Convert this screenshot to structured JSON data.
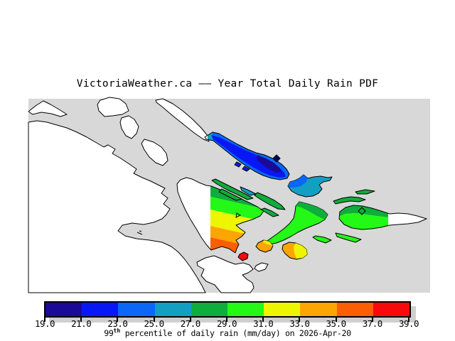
{
  "title": "VictoriaWeather.ca —— Year Total Daily Rain PDF",
  "map": {
    "sea_color": "#d8d8d8",
    "land_color": "#ffffff",
    "coastline_color": "#000000"
  },
  "colorbar": {
    "tick_labels": [
      "19.0",
      "21.0",
      "23.0",
      "25.0",
      "27.0",
      "29.0",
      "31.0",
      "33.0",
      "35.0",
      "37.0",
      "39.0"
    ],
    "segment_colors": [
      "#1a0a96",
      "#0718f5",
      "#0a67f7",
      "#12a0c2",
      "#0fad3b",
      "#24f816",
      "#edf501",
      "#fca503",
      "#fc5e04",
      "#f8090a"
    ],
    "caption_prefix": "99",
    "caption_sup": "th",
    "caption_rest": " percentile of daily rain (mm/day) on 2026-Apr-20"
  },
  "chart_data": {
    "type": "heatmap",
    "title": "VictoriaWeather.ca —— Year Total Daily Rain PDF",
    "legend_label": "99th percentile of daily rain (mm/day) on 2026-Apr-20",
    "units": "mm/day",
    "date_shown": "2026-Apr-20",
    "scale_ticks": [
      19.0,
      21.0,
      23.0,
      25.0,
      27.0,
      29.0,
      31.0,
      33.0,
      35.0,
      37.0,
      39.0
    ],
    "scale_colors": [
      "#1a0a96",
      "#0718f5",
      "#0a67f7",
      "#12a0c2",
      "#0fad3b",
      "#24f816",
      "#edf501",
      "#fca503",
      "#fc5e04",
      "#f8090a"
    ],
    "legend_position": "bottom"
  }
}
